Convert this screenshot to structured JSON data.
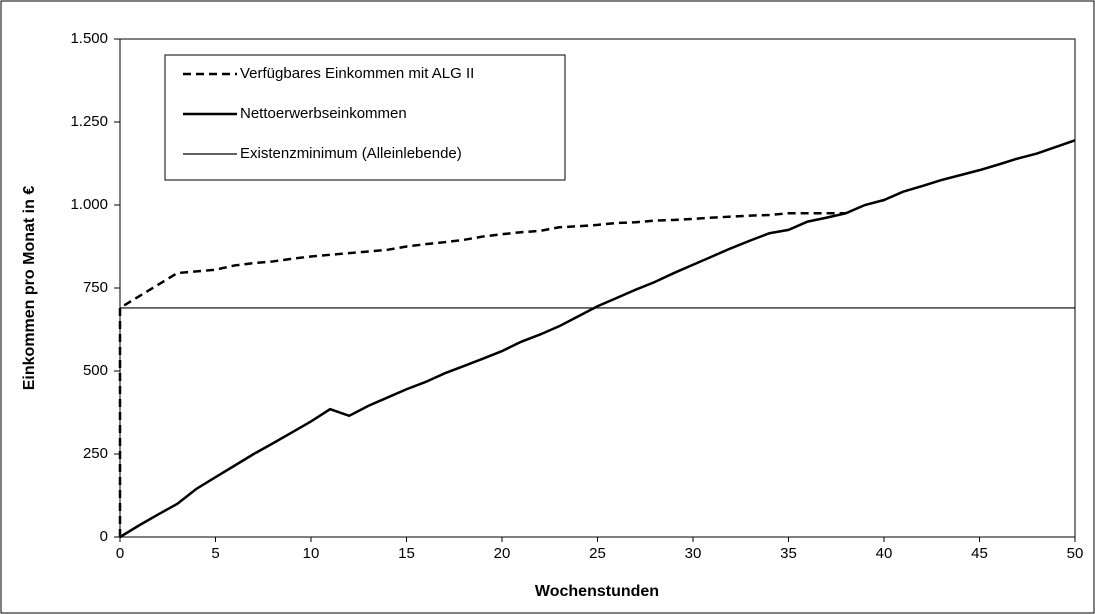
{
  "chart_data": {
    "type": "line",
    "xlabel": "Wochenstunden",
    "ylabel": "Einkommen pro Monat in €",
    "xlim": [
      0,
      50
    ],
    "xticks": [
      0,
      5,
      10,
      15,
      20,
      25,
      30,
      35,
      40,
      45,
      50
    ],
    "ylim": [
      0,
      1500
    ],
    "yticks": [
      0,
      250,
      500,
      750,
      {
        "value": 1000,
        "label": "1.000"
      },
      {
        "value": 1250,
        "label": "1.250"
      },
      {
        "value": 1500,
        "label": "1.500"
      }
    ],
    "grid": false,
    "legend": "upper left",
    "series": [
      {
        "name": "Verfügbares Einkommen mit ALG II",
        "color": "#000000",
        "style": "dashed",
        "width": 2.5,
        "x": [
          0,
          0,
          1,
          2,
          3,
          4,
          5,
          6,
          7,
          8,
          9,
          10,
          11,
          12,
          13,
          14,
          15,
          16,
          17,
          18,
          19,
          20,
          21,
          22,
          23,
          24,
          25,
          26,
          27,
          28,
          29,
          30,
          31,
          32,
          33,
          34,
          35,
          36,
          37,
          38
        ],
        "values": [
          0,
          690,
          725,
          760,
          795,
          800,
          805,
          818,
          825,
          830,
          838,
          845,
          850,
          855,
          860,
          865,
          875,
          882,
          888,
          895,
          905,
          912,
          918,
          922,
          933,
          936,
          940,
          946,
          948,
          953,
          955,
          958,
          962,
          965,
          968,
          970,
          975,
          975,
          975,
          975
        ]
      },
      {
        "name": "Nettoerwerbseinkommen",
        "color": "#000000",
        "style": "solid",
        "width": 2.5,
        "x": [
          0,
          1,
          2,
          3,
          4,
          5,
          6,
          7,
          8,
          9,
          10,
          11,
          12,
          13,
          14,
          15,
          16,
          17,
          18,
          19,
          20,
          21,
          22,
          23,
          24,
          25,
          26,
          27,
          28,
          29,
          30,
          31,
          32,
          33,
          34,
          35,
          36,
          37,
          38,
          39,
          40,
          41,
          42,
          43,
          44,
          45,
          46,
          47,
          48,
          49,
          50
        ],
        "values": [
          0,
          35,
          68,
          100,
          145,
          180,
          215,
          250,
          282,
          315,
          348,
          385,
          365,
          395,
          420,
          445,
          467,
          493,
          515,
          537,
          560,
          588,
          610,
          635,
          665,
          695,
          720,
          745,
          768,
          795,
          820,
          845,
          870,
          893,
          915,
          925,
          950,
          962,
          975,
          1000,
          1015,
          1040,
          1057,
          1075,
          1090,
          1105,
          1122,
          1140,
          1155,
          1175,
          1195
        ]
      },
      {
        "name": "Existenzminimum (Alleinlebende)",
        "color": "#000000",
        "style": "solid",
        "width": 1.2,
        "x": [
          0,
          50
        ],
        "values": [
          690,
          690
        ]
      }
    ]
  }
}
